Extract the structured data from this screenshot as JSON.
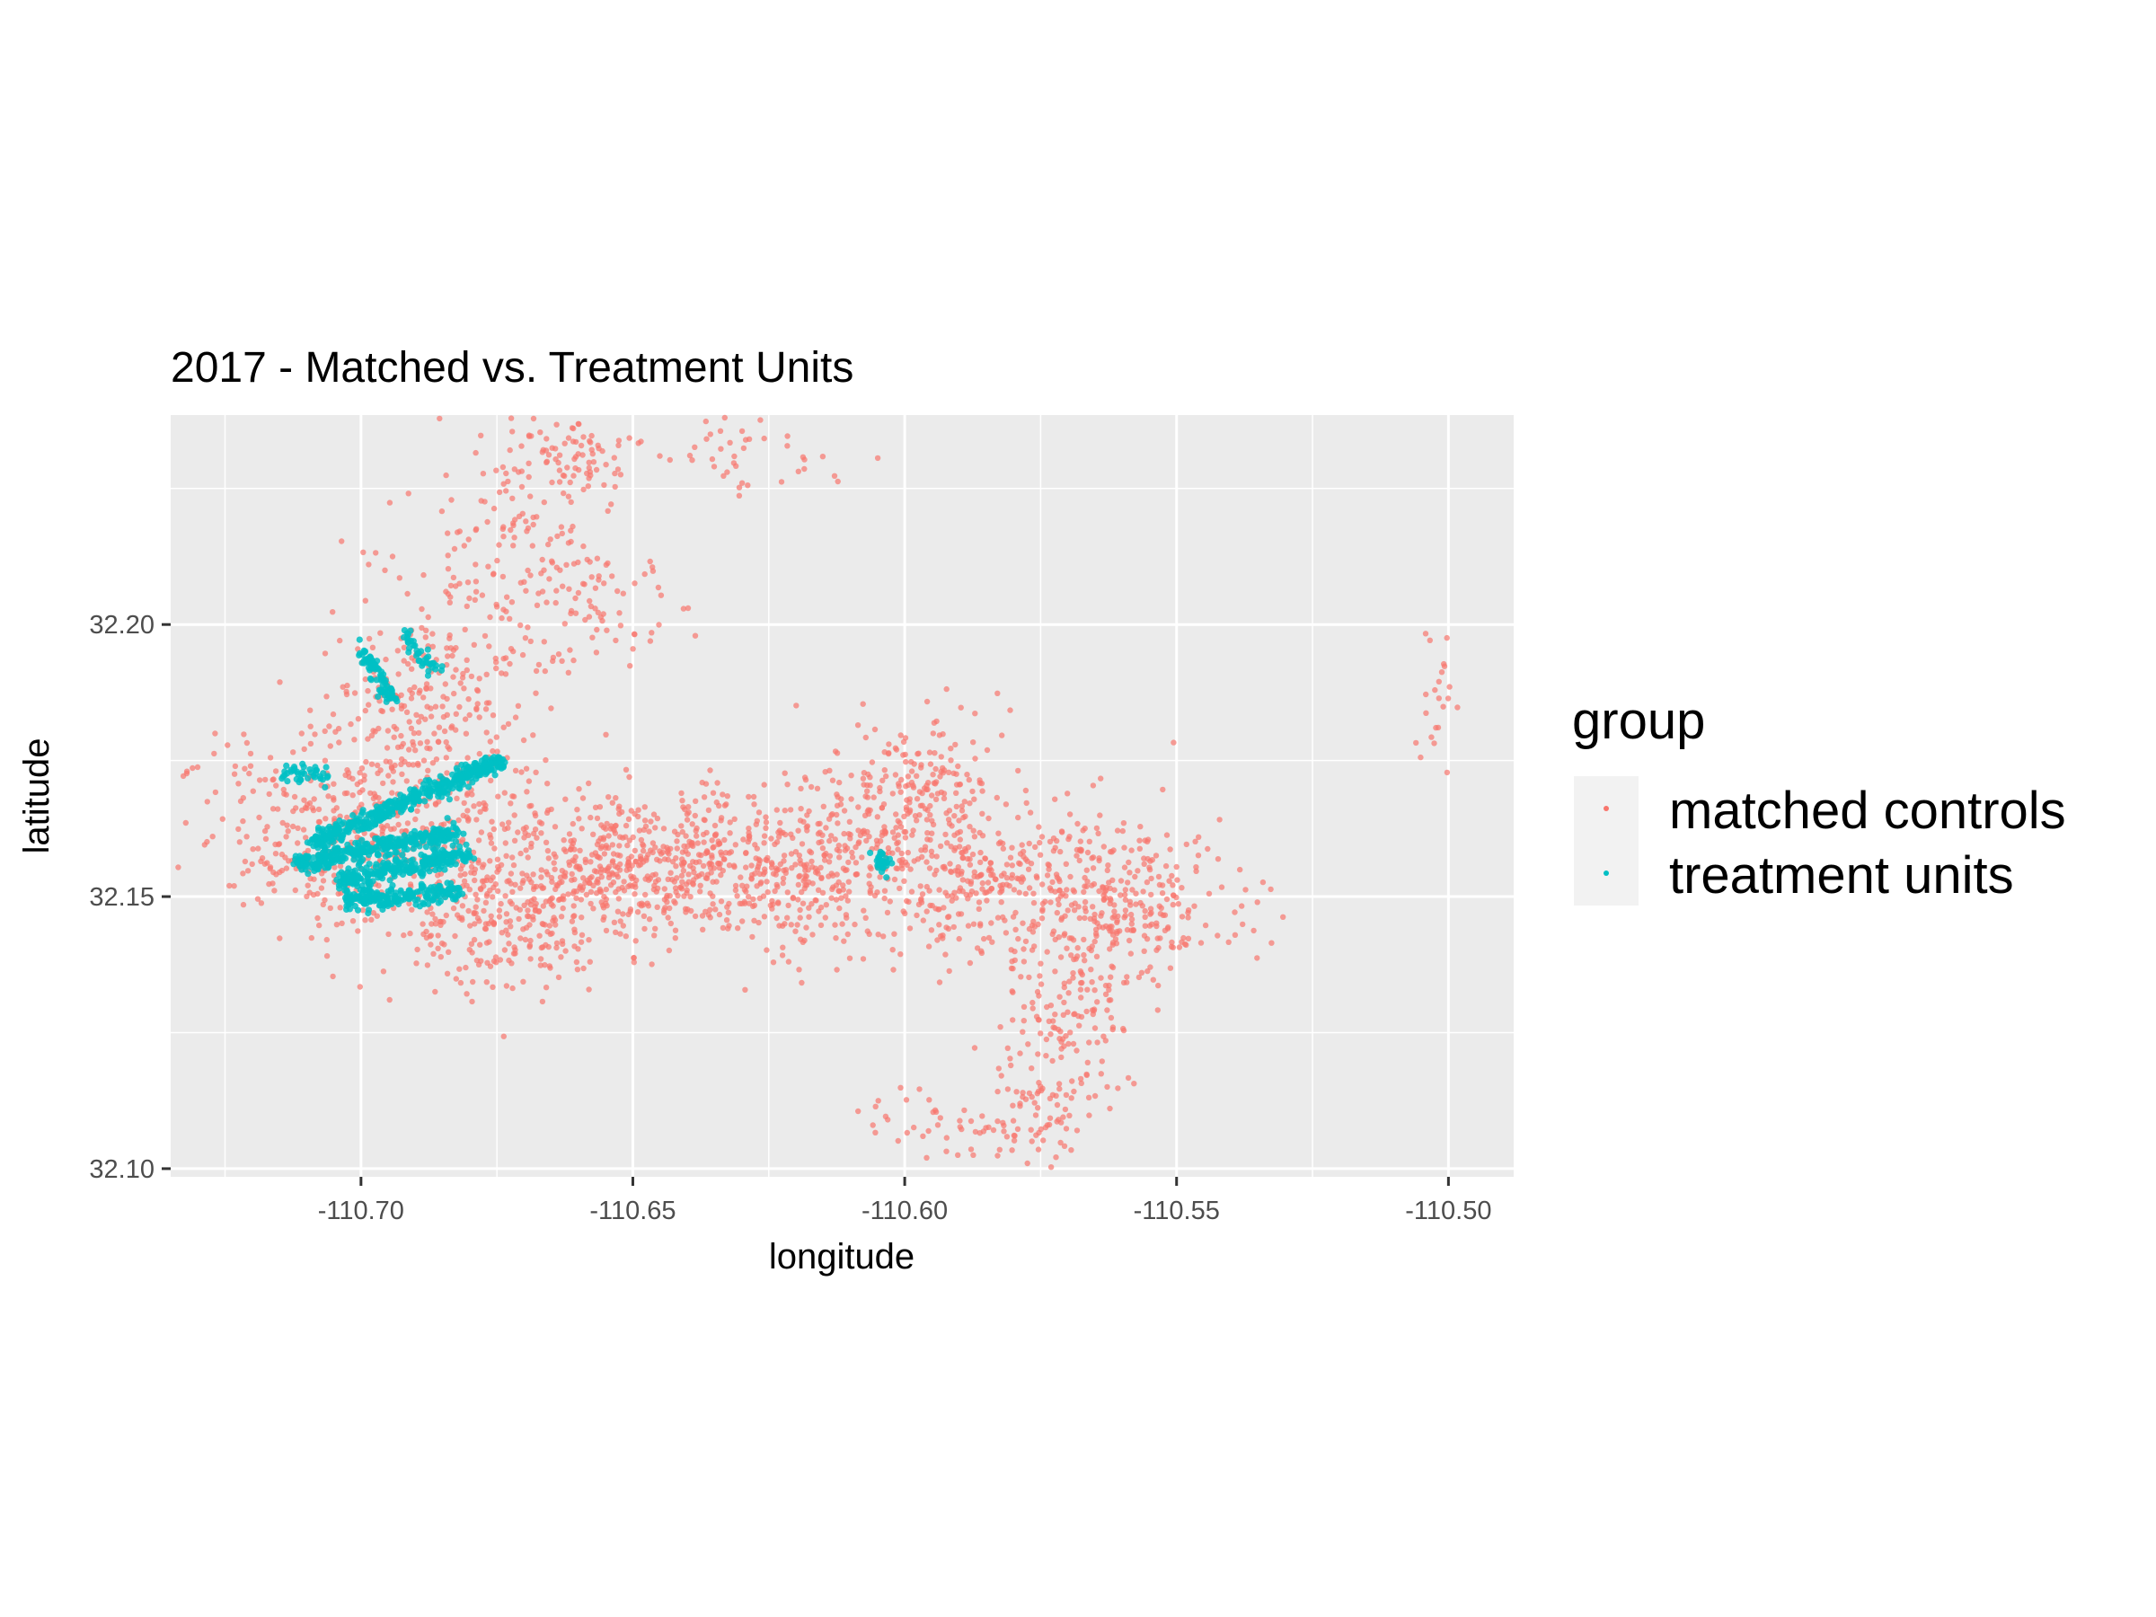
{
  "chart_data": {
    "type": "scatter",
    "title": "2017 - Matched vs. Treatment Units",
    "xlabel": "longitude",
    "ylabel": "latitude",
    "xlim": [
      -110.735,
      -110.488
    ],
    "ylim": [
      32.0985,
      32.2385
    ],
    "x_ticks": [
      -110.7,
      -110.65,
      -110.6,
      -110.55,
      -110.5
    ],
    "x_tick_labels": [
      "-110.70",
      "-110.65",
      "-110.60",
      "-110.55",
      "-110.50"
    ],
    "y_ticks": [
      32.1,
      32.15,
      32.2
    ],
    "y_tick_labels": [
      "32.10",
      "32.15",
      "32.20"
    ],
    "grid": true,
    "legend": {
      "title": "group",
      "position": "right",
      "entries": [
        "matched controls",
        "treatment units"
      ]
    },
    "series": [
      {
        "name": "matched controls",
        "color": "#F8766D",
        "clusters": [
          {
            "cx": -110.7,
            "cy": 32.162,
            "sx": 0.014,
            "sy": 0.009,
            "n": 450
          },
          {
            "cx": -110.688,
            "cy": 32.185,
            "sx": 0.01,
            "sy": 0.011,
            "n": 240
          },
          {
            "cx": -110.672,
            "cy": 32.213,
            "sx": 0.009,
            "sy": 0.012,
            "n": 150
          },
          {
            "cx": -110.66,
            "cy": 32.232,
            "sx": 0.006,
            "sy": 0.003,
            "n": 70
          },
          {
            "cx": -110.632,
            "cy": 32.231,
            "sx": 0.01,
            "sy": 0.003,
            "n": 40
          },
          {
            "cx": -110.655,
            "cy": 32.205,
            "sx": 0.006,
            "sy": 0.006,
            "n": 60
          },
          {
            "cx": -110.668,
            "cy": 32.152,
            "sx": 0.012,
            "sy": 0.008,
            "n": 350
          },
          {
            "cx": -110.642,
            "cy": 32.156,
            "sx": 0.011,
            "sy": 0.007,
            "n": 380
          },
          {
            "cx": -110.618,
            "cy": 32.154,
            "sx": 0.01,
            "sy": 0.008,
            "n": 280
          },
          {
            "cx": -110.598,
            "cy": 32.166,
            "sx": 0.009,
            "sy": 0.008,
            "n": 300
          },
          {
            "cx": -110.582,
            "cy": 32.152,
            "sx": 0.01,
            "sy": 0.007,
            "n": 220
          },
          {
            "cx": -110.56,
            "cy": 32.15,
            "sx": 0.009,
            "sy": 0.008,
            "n": 260
          },
          {
            "cx": -110.57,
            "cy": 32.128,
            "sx": 0.006,
            "sy": 0.011,
            "n": 160
          },
          {
            "cx": -110.59,
            "cy": 32.108,
            "sx": 0.008,
            "sy": 0.003,
            "n": 50
          },
          {
            "cx": -110.574,
            "cy": 32.11,
            "sx": 0.004,
            "sy": 0.004,
            "n": 40
          },
          {
            "cx": -110.675,
            "cy": 32.142,
            "sx": 0.01,
            "sy": 0.006,
            "n": 90
          },
          {
            "cx": -110.502,
            "cy": 32.185,
            "sx": 0.002,
            "sy": 0.009,
            "n": 22
          },
          {
            "cx": -110.536,
            "cy": 32.146,
            "sx": 0.003,
            "sy": 0.003,
            "n": 10
          }
        ]
      },
      {
        "name": "treatment units",
        "color": "#00BFC4",
        "segments": [
          {
            "from": [
              -110.709,
              32.16
            ],
            "to": [
              -110.674,
              32.175
            ],
            "n": 420
          },
          {
            "from": [
              -110.712,
              32.156
            ],
            "to": [
              -110.682,
              32.162
            ],
            "n": 320
          },
          {
            "from": [
              -110.704,
              32.153
            ],
            "to": [
              -110.68,
              32.158
            ],
            "n": 260
          },
          {
            "from": [
              -110.703,
              32.149
            ],
            "to": [
              -110.682,
              32.151
            ],
            "n": 200
          },
          {
            "from": [
              -110.7,
              32.195
            ],
            "to": [
              -110.694,
              32.186
            ],
            "n": 80
          },
          {
            "from": [
              -110.692,
              32.198
            ],
            "to": [
              -110.686,
              32.191
            ],
            "n": 40
          },
          {
            "from": [
              -110.715,
              32.173
            ],
            "to": [
              -110.705,
              32.172
            ],
            "n": 40
          },
          {
            "from": [
              -110.605,
              32.158
            ],
            "to": [
              -110.603,
              32.155
            ],
            "n": 30
          }
        ]
      }
    ]
  }
}
